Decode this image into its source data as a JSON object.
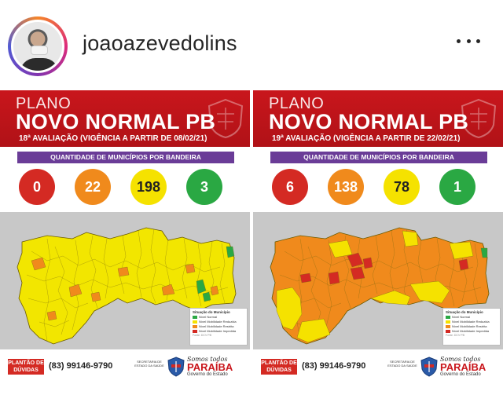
{
  "header": {
    "username": "joaoazevedolins",
    "avatar_icon": "avatar-icon",
    "more_icon": "more-options-icon"
  },
  "panels": [
    {
      "plano": "PLANO",
      "title": "NOVO NORMAL PB",
      "evaluation": "18ª AVALIAÇÃO (VIGÊNCIA A PARTIR DE 08/02/21)",
      "qty_label": "QUANTIDADE DE MUNICÍPIOS POR BANDEIRA",
      "counts": {
        "red": "0",
        "orange": "22",
        "yellow": "198",
        "green": "3"
      },
      "map_dominant_color": "#f2e600",
      "legend": {
        "title": "Situação do Município",
        "items": [
          "Nível Normal",
          "Nível Mobilidade Reduzida",
          "Nível Mobilidade Restrita",
          "Nível Mobilidade Impedida"
        ],
        "source": "Fonte: DCV PB"
      },
      "footer": {
        "plantao": "PLANTÃO DE DÚVIDAS",
        "phone": "(83) 99146-9790",
        "secretaria": "SECRETARIA DE ESTADO DA SAÚDE",
        "somos": "Somos todos",
        "paraiba": "PARAÍBA",
        "governo": "Governo do Estado"
      }
    },
    {
      "plano": "PLANO",
      "title": "NOVO NORMAL PB",
      "evaluation": "19ª AVALIAÇÃO (VIGÊNCIA A PARTIR DE 22/02/21)",
      "qty_label": "QUANTIDADE DE MUNICÍPIOS POR BANDEIRA",
      "counts": {
        "red": "6",
        "orange": "138",
        "yellow": "78",
        "green": "1"
      },
      "map_dominant_color": "#f08a1c",
      "legend": {
        "title": "Situação do Município",
        "items": [
          "Nível Normal",
          "Nível Mobilidade Reduzida",
          "Nível Mobilidade Restrita",
          "Nível Mobilidade Impedida"
        ],
        "source": "Fonte: DCV PB"
      },
      "footer": {
        "plantao": "PLANTÃO DE DÚVIDAS",
        "phone": "(83) 99146-9790",
        "secretaria": "SECRETARIA DE ESTADO DA SAÚDE",
        "somos": "Somos todos",
        "paraiba": "PARAÍBA",
        "governo": "Governo do Estado"
      }
    }
  ],
  "colors": {
    "red": "#d42a23",
    "orange": "#f08a1c",
    "yellow": "#f5e200",
    "green": "#2aa843",
    "banner_red": "#c9161c",
    "purple": "#6a3c97"
  }
}
